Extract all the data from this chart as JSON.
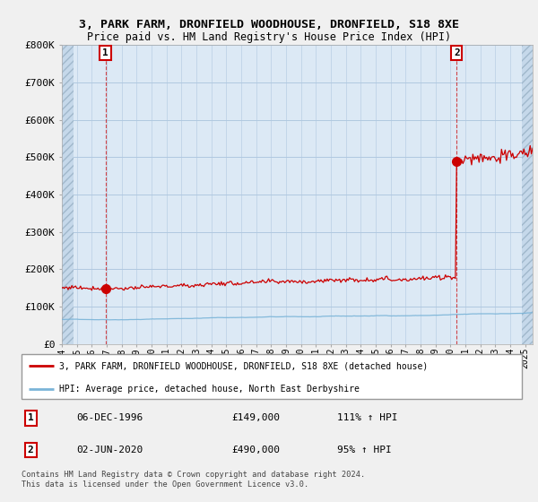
{
  "title_line1": "3, PARK FARM, DRONFIELD WOODHOUSE, DRONFIELD, S18 8XE",
  "title_line2": "Price paid vs. HM Land Registry's House Price Index (HPI)",
  "ylim": [
    0,
    800000
  ],
  "yticks": [
    0,
    100000,
    200000,
    300000,
    400000,
    500000,
    600000,
    700000,
    800000
  ],
  "ytick_labels": [
    "£0",
    "£100K",
    "£200K",
    "£300K",
    "£400K",
    "£500K",
    "£600K",
    "£700K",
    "£800K"
  ],
  "hpi_color": "#7ab4d8",
  "price_color": "#cc0000",
  "bg_color": "#f0f0f0",
  "plot_bg": "#dce9f5",
  "grid_color": "#b0c8e0",
  "hatch_color": "#c8d8e8",
  "legend_label_red": "3, PARK FARM, DRONFIELD WOODHOUSE, DRONFIELD, S18 8XE (detached house)",
  "legend_label_blue": "HPI: Average price, detached house, North East Derbyshire",
  "transaction1_date": "06-DEC-1996",
  "transaction1_price": "£149,000",
  "transaction1_hpi": "111% ↑ HPI",
  "transaction2_date": "02-JUN-2020",
  "transaction2_price": "£490,000",
  "transaction2_hpi": "95% ↑ HPI",
  "footer": "Contains HM Land Registry data © Crown copyright and database right 2024.\nThis data is licensed under the Open Government Licence v3.0.",
  "t1_year": 1996.9167,
  "t2_year": 2020.4167,
  "price1": 149000,
  "price2": 490000,
  "xlim_start": 1994.0,
  "xlim_end": 2025.5,
  "hatch_left_end": 1994.75,
  "hatch_right_start": 2024.75
}
